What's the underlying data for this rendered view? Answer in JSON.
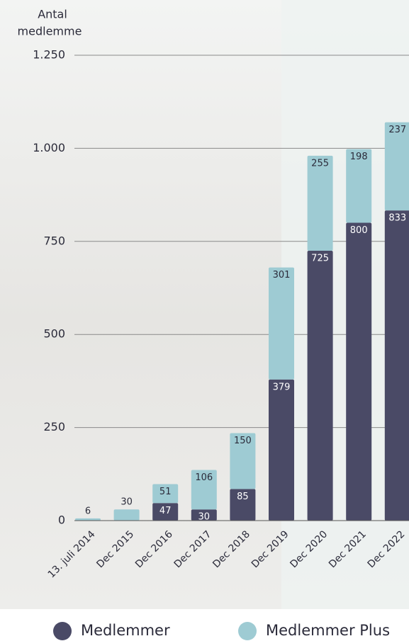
{
  "chart_data": {
    "type": "stacked-bar",
    "y_label": [
      "Antal",
      "medlemme"
    ],
    "categories": [
      "13. juli 2014",
      "Dec 2015",
      "Dec 2016",
      "Dec 2017",
      "Dec 2018",
      "Dec 2019",
      "Dec 2020",
      "Dec 2021",
      "Dec 2022"
    ],
    "series": [
      {
        "name": "Medlemmer",
        "color": "#4a4a66",
        "values": [
          null,
          null,
          47,
          30,
          85,
          379,
          725,
          800,
          833
        ]
      },
      {
        "name": "Medlemmer Plus",
        "color": "#9ecbd3",
        "values": [
          6,
          30,
          51,
          106,
          150,
          301,
          255,
          198,
          237
        ]
      }
    ],
    "ylim": [
      0,
      1250
    ],
    "yticks": [
      0,
      250,
      500,
      750,
      {
        "value": 1000,
        "label": "1.000"
      },
      {
        "value": 1250,
        "label": "1.250"
      }
    ],
    "grid": true
  }
}
